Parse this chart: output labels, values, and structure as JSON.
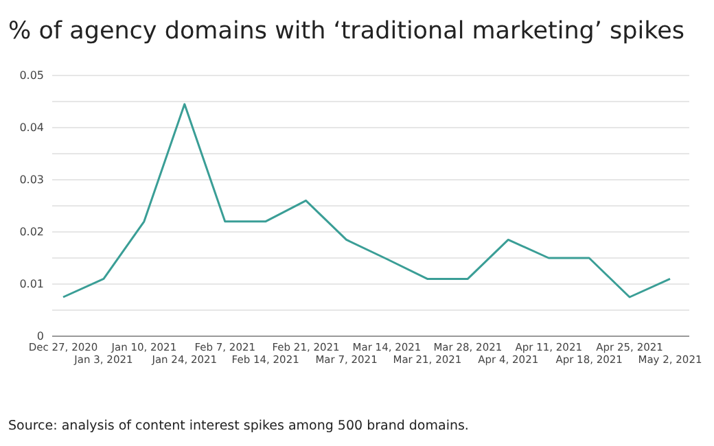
{
  "chart_data": {
    "type": "line",
    "title": "% of agency domains with ‘traditional marketing’ spikes",
    "categories": [
      "Dec 27, 2020",
      "Jan 3, 2021",
      "Jan 10, 2021",
      "Jan 24, 2021",
      "Feb 7, 2021",
      "Feb 14, 2021",
      "Feb 21, 2021",
      "Mar 7, 2021",
      "Mar 14, 2021",
      "Mar 21, 2021",
      "Mar 28, 2021",
      "Apr 4, 2021",
      "Apr 11, 2021",
      "Apr 18, 2021",
      "Apr 25, 2021",
      "May 2, 2021"
    ],
    "series": [
      {
        "color": "#3a9e96",
        "values": [
          0.0075,
          0.011,
          0.022,
          0.0445,
          0.022,
          0.022,
          0.026,
          0.0185,
          0.0148,
          0.011,
          0.011,
          0.0185,
          0.015,
          0.015,
          0.0075,
          0.011
        ]
      }
    ],
    "ylim": [
      0,
      0.05
    ],
    "yticks": [
      0,
      {
        "value": 0.005,
        "label": null
      },
      0.01,
      {
        "value": 0.015,
        "label": null
      },
      0.02,
      {
        "value": 0.025,
        "label": null
      },
      0.03,
      {
        "value": 0.035,
        "label": null
      },
      0.04,
      {
        "value": 0.045,
        "label": null
      },
      0.05
    ],
    "grid": "y",
    "marker": "none",
    "line_style": "solid",
    "annotations": [
      "Source: analysis of content interest spikes among 500 brand domains."
    ]
  }
}
